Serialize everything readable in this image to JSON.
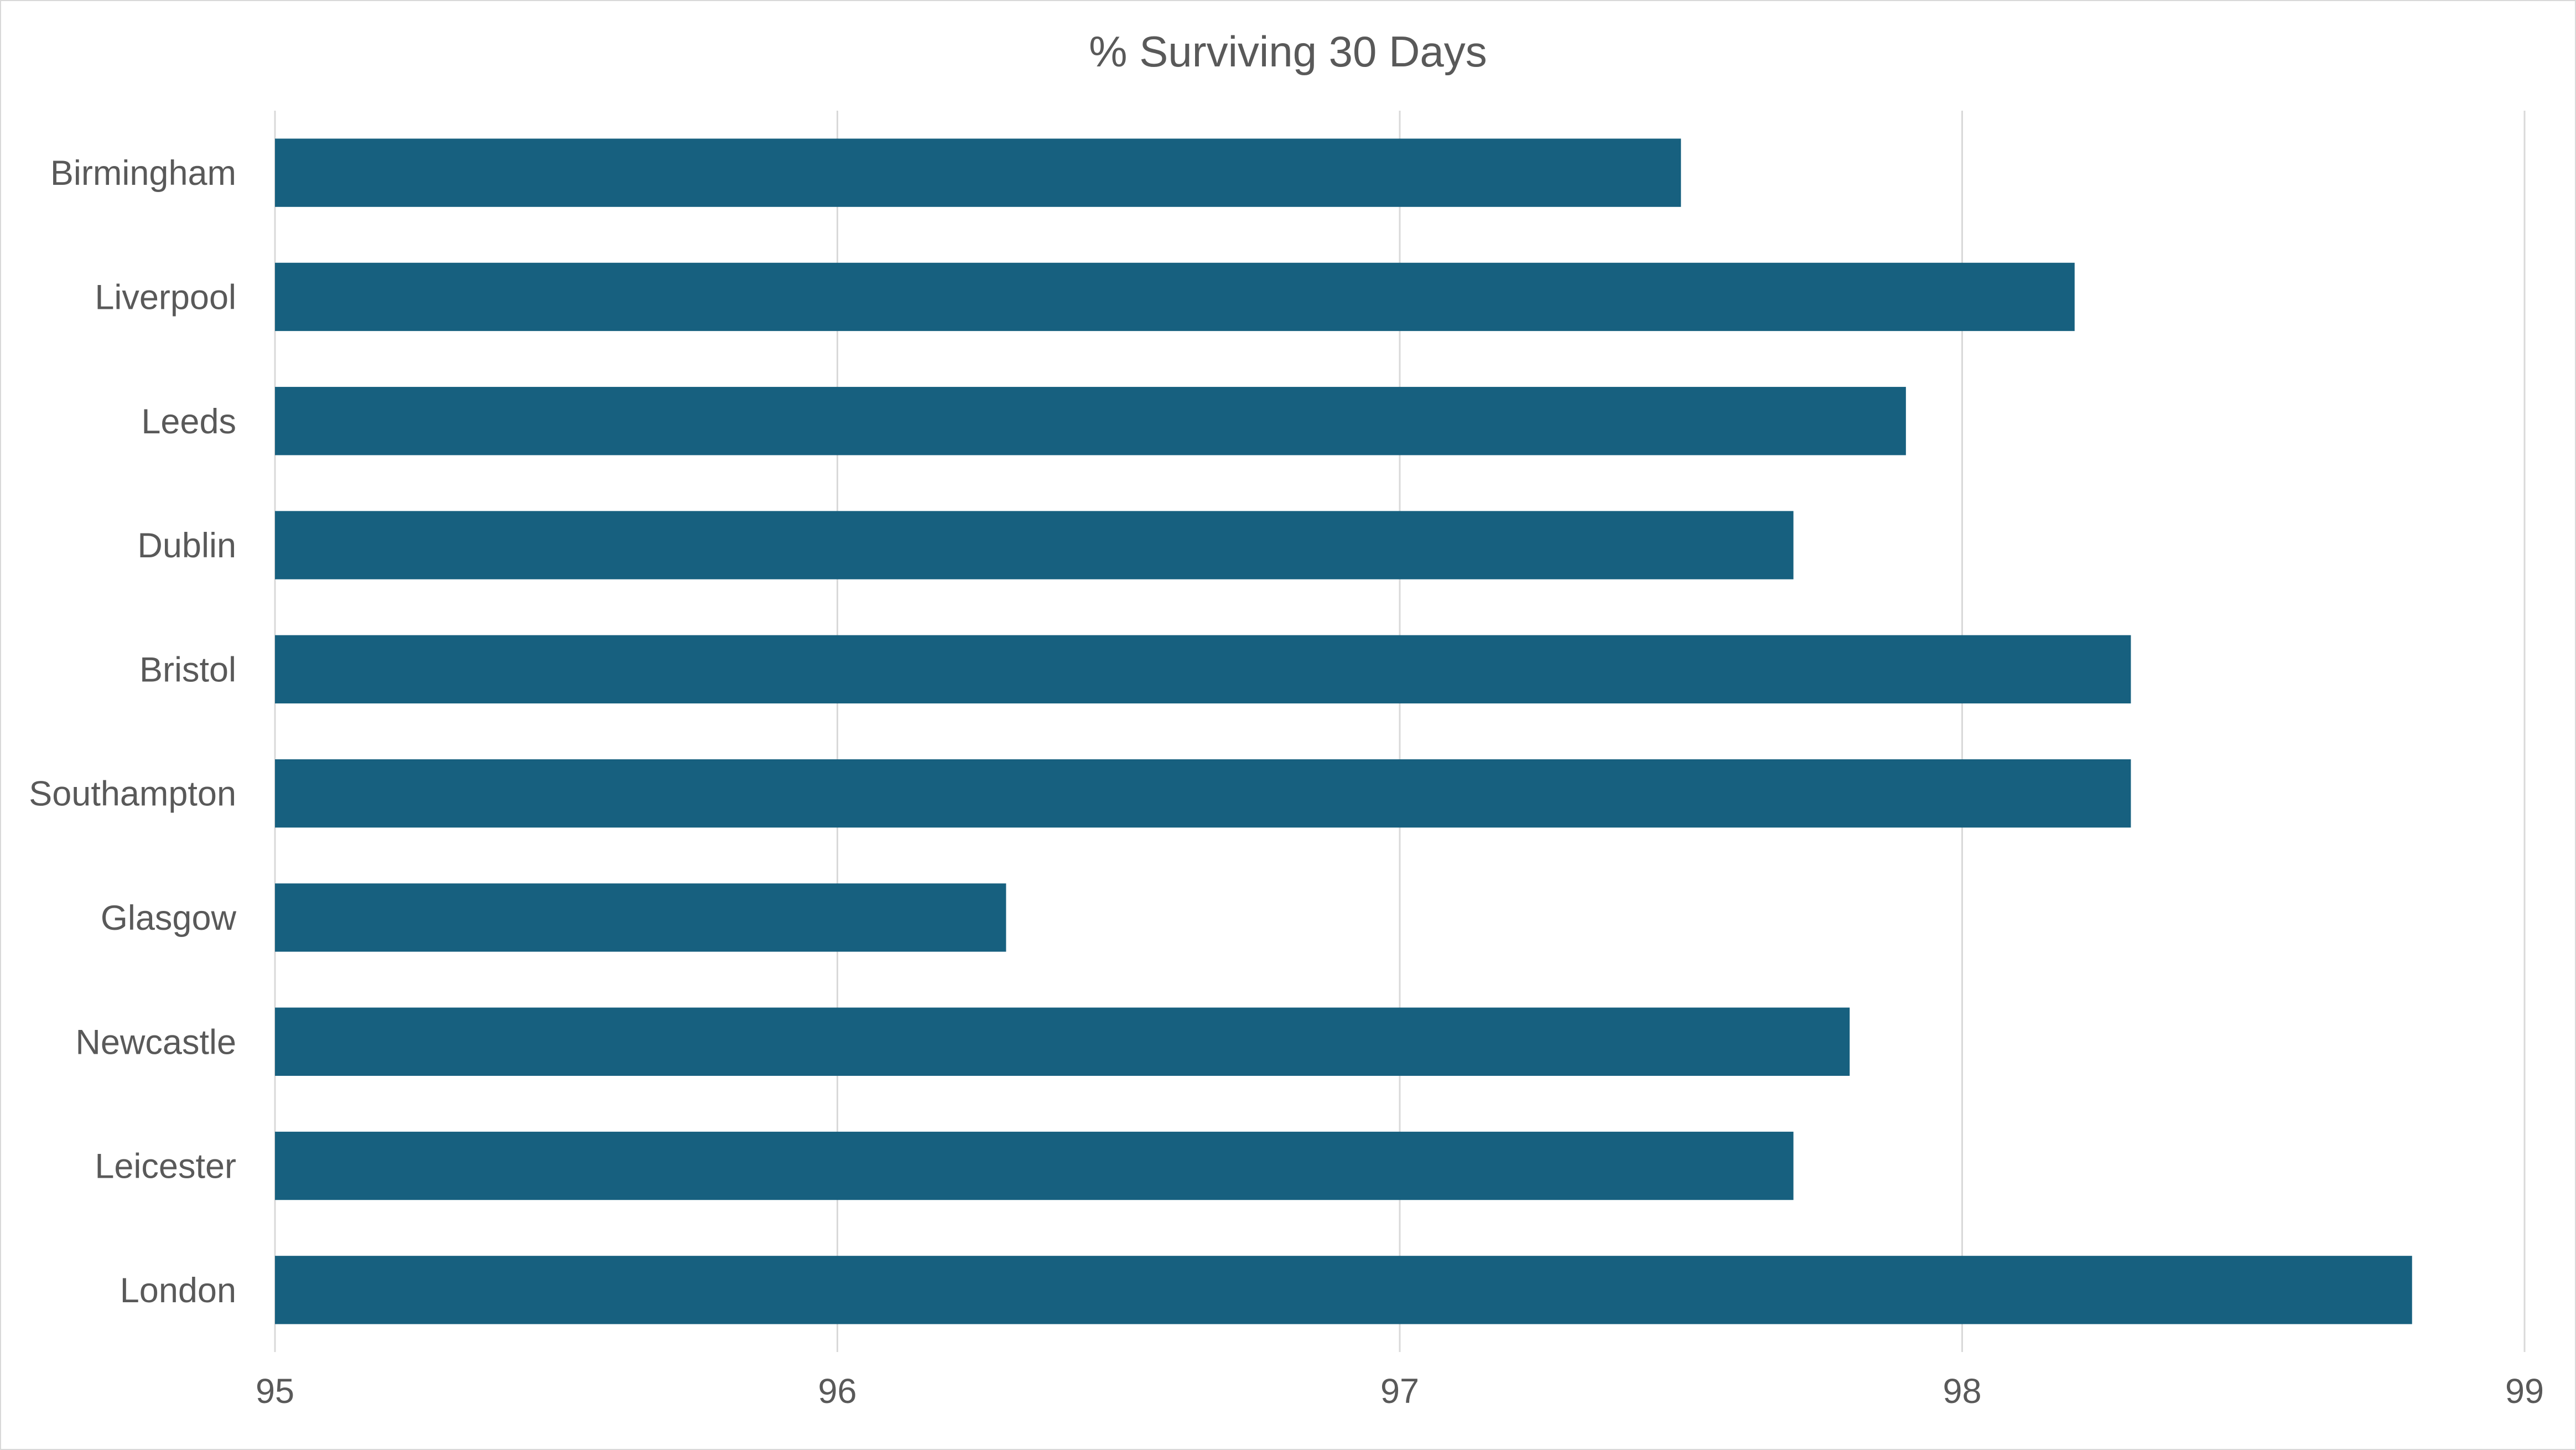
{
  "chart_data": {
    "type": "bar",
    "orientation": "horizontal",
    "title": "% Surviving 30 Days",
    "xlabel": "",
    "ylabel": "",
    "categories": [
      "Birmingham",
      "Liverpool",
      "Leeds",
      "Dublin",
      "Bristol",
      "Southampton",
      "Glasgow",
      "Newcastle",
      "Leicester",
      "London"
    ],
    "values": [
      97.5,
      98.2,
      97.9,
      97.7,
      98.3,
      98.3,
      96.3,
      97.8,
      97.7,
      98.8
    ],
    "xlim": [
      95,
      99
    ],
    "xticks": [
      "95",
      "96",
      "97",
      "98",
      "99"
    ],
    "grid": true,
    "legend": "none",
    "bar_color": "#17607f"
  }
}
